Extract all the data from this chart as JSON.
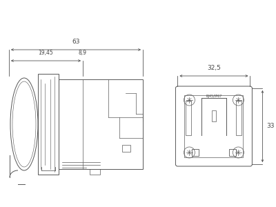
{
  "bg_color": "#ffffff",
  "line_color": "#555555",
  "dim_color": "#444444",
  "fig_width": 4.0,
  "fig_height": 3.0,
  "dpi": 100,
  "dim_63_label": "63",
  "dim_1945_label": "19,45",
  "dim_89_label": "8,9",
  "dim_325_label": "32,5",
  "dim_33_label": "33",
  "label_rj45": "RJ45/IP67",
  "xlim": [
    0,
    400
  ],
  "ylim": [
    0,
    300
  ]
}
